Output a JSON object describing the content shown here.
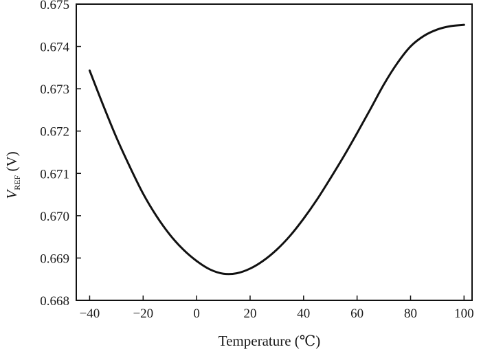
{
  "chart_data": {
    "type": "line",
    "title": "",
    "xlabel": "Temperature (℃)",
    "ylabel": {
      "main": "V",
      "subscript": "REF",
      "unit": " (V)"
    },
    "xlim": [
      -45,
      103
    ],
    "ylim": [
      0.668,
      0.675
    ],
    "xticks": [
      -40,
      -20,
      0,
      20,
      40,
      60,
      80,
      100
    ],
    "xtick_labels": [
      "−40",
      "−20",
      "0",
      "20",
      "40",
      "60",
      "80",
      "100"
    ],
    "yticks": [
      0.668,
      0.669,
      0.67,
      0.671,
      0.672,
      0.673,
      0.674,
      0.675
    ],
    "ytick_labels": [
      "0.668",
      "0.669",
      "0.670",
      "0.671",
      "0.672",
      "0.673",
      "0.674",
      "0.675"
    ],
    "grid": false,
    "series": [
      {
        "color": "#111111",
        "x": [
          -40,
          -35,
          -30,
          -25,
          -20,
          -15,
          -10,
          -5,
          0,
          5,
          10,
          15,
          20,
          25,
          30,
          35,
          40,
          45,
          50,
          55,
          60,
          65,
          70,
          75,
          80,
          85,
          90,
          95,
          100
        ],
        "y": [
          0.67343,
          0.67262,
          0.67185,
          0.67116,
          0.67052,
          0.66999,
          0.66955,
          0.6692,
          0.66893,
          0.66873,
          0.66863,
          0.66864,
          0.66875,
          0.66894,
          0.6692,
          0.66953,
          0.66993,
          0.67038,
          0.67088,
          0.6714,
          0.67195,
          0.67252,
          0.6731,
          0.6736,
          0.674,
          0.67425,
          0.6744,
          0.67448,
          0.67451
        ]
      }
    ]
  }
}
